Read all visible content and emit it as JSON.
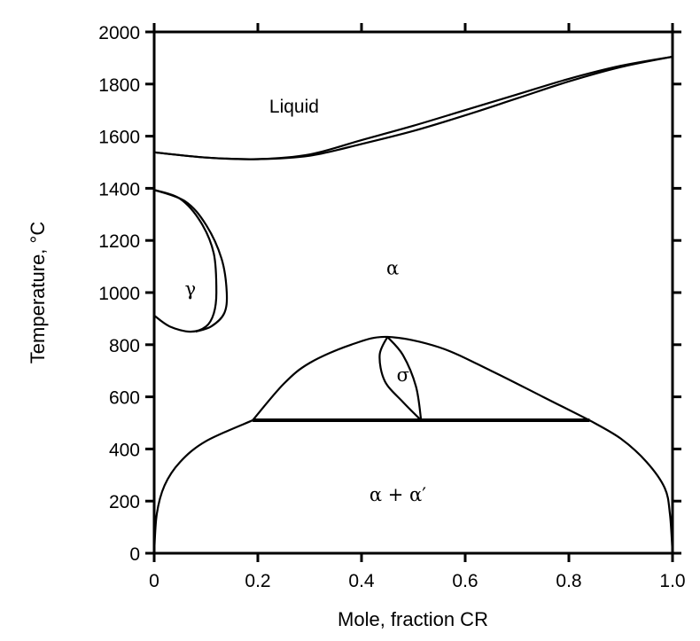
{
  "chart_data": {
    "type": "line",
    "title": "",
    "xlabel": "Mole, fraction CR",
    "ylabel": "Temperature, °C",
    "xlim": [
      0,
      1.0
    ],
    "ylim": [
      0,
      2000
    ],
    "xticks": [
      "0",
      "0.2",
      "0.4",
      "0.6",
      "0.8",
      "1.0"
    ],
    "yticks": [
      "0",
      "200",
      "400",
      "600",
      "800",
      "1000",
      "1200",
      "1400",
      "1600",
      "1800",
      "2000"
    ],
    "grid": false,
    "region_labels": [
      {
        "text": "Liquid",
        "x": 0.27,
        "y": 1690
      },
      {
        "text": "α",
        "x": 0.46,
        "y": 1070
      },
      {
        "text": "γ",
        "x": 0.07,
        "y": 990
      },
      {
        "text": "σ",
        "x": 0.48,
        "y": 660
      },
      {
        "text": "α + α′",
        "x": 0.47,
        "y": 200
      }
    ],
    "series": [
      {
        "name": "liquidus",
        "x": [
          0,
          0.1,
          0.2,
          0.3,
          0.4,
          0.5,
          0.6,
          0.7,
          0.8,
          0.9,
          1.0
        ],
        "y": [
          1538,
          1518,
          1512,
          1530,
          1585,
          1640,
          1700,
          1760,
          1820,
          1870,
          1905
        ]
      },
      {
        "name": "solidus",
        "x": [
          0,
          0.1,
          0.2,
          0.3,
          0.4,
          0.5,
          0.6,
          0.7,
          0.8,
          0.9,
          1.0
        ],
        "y": [
          1538,
          1518,
          1512,
          1525,
          1570,
          1620,
          1680,
          1745,
          1810,
          1865,
          1905
        ]
      },
      {
        "name": "gamma-loop-inner",
        "x": [
          0,
          0.05,
          0.09,
          0.115,
          0.12,
          0.115,
          0.1,
          0.07,
          0.03,
          0
        ],
        "y": [
          1394,
          1360,
          1270,
          1150,
          1000,
          920,
          870,
          850,
          870,
          912
        ]
      },
      {
        "name": "gamma-loop-outer",
        "x": [
          0,
          0.06,
          0.1,
          0.13,
          0.14,
          0.135,
          0.11,
          0.08
        ],
        "y": [
          1394,
          1350,
          1260,
          1130,
          1000,
          920,
          870,
          850
        ]
      },
      {
        "name": "sigma-dome",
        "x": [
          0.19,
          0.25,
          0.3,
          0.38,
          0.45,
          0.55,
          0.65,
          0.75,
          0.84
        ],
        "y": [
          510,
          650,
          730,
          800,
          830,
          790,
          700,
          600,
          510
        ]
      },
      {
        "name": "sigma-left",
        "x": [
          0.45,
          0.435,
          0.445,
          0.48,
          0.515
        ],
        "y": [
          830,
          760,
          660,
          580,
          510
        ]
      },
      {
        "name": "sigma-right",
        "x": [
          0.45,
          0.48,
          0.505,
          0.515
        ],
        "y": [
          830,
          760,
          640,
          510
        ]
      },
      {
        "name": "eutectoid",
        "x": [
          0.19,
          0.84
        ],
        "y": [
          510,
          510
        ]
      },
      {
        "name": "miscibility-left",
        "x": [
          0,
          0.005,
          0.02,
          0.05,
          0.1,
          0.19
        ],
        "y": [
          0,
          150,
          260,
          350,
          430,
          510
        ]
      },
      {
        "name": "miscibility-right",
        "x": [
          0.84,
          0.9,
          0.95,
          0.985,
          0.995,
          1.0
        ],
        "y": [
          510,
          440,
          350,
          250,
          150,
          0
        ]
      }
    ]
  }
}
